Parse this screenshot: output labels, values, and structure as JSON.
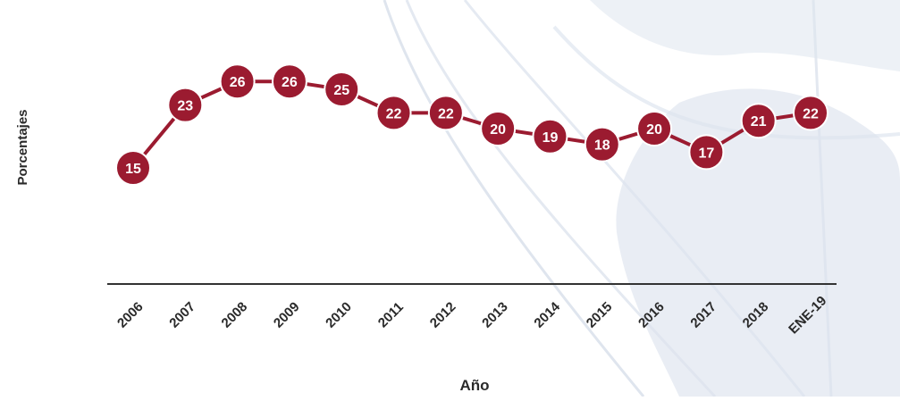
{
  "chart_data": {
    "type": "line",
    "title": "",
    "xlabel": "Año",
    "ylabel": "Porcentajes",
    "categories": [
      "2006",
      "2007",
      "2008",
      "2009",
      "2010",
      "2011",
      "2012",
      "2013",
      "2014",
      "2015",
      "2016",
      "2017",
      "2018",
      "ENE-19"
    ],
    "series": [
      {
        "values": [
          15,
          23,
          26,
          26,
          25,
          22,
          22,
          20,
          19,
          18,
          20,
          17,
          21,
          22
        ],
        "color": "#9b1b30"
      }
    ],
    "ylim": [
      0,
      30
    ],
    "grid": false,
    "legend": "none",
    "axis_color": "#333333",
    "background_motif": "faint map watermark"
  }
}
